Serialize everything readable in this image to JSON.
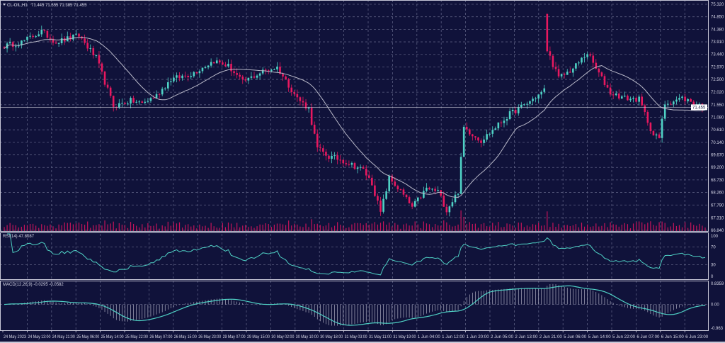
{
  "header": {
    "symbol": "CL-OIL,H1",
    "ohlc": "71.445 71.555 71.385 71.455"
  },
  "rsi_label": "RSI(14) 47.8087",
  "macd_label": "MACD(12,26,9) -0.0295 -0.0582",
  "current_price": "71.455",
  "colors": {
    "background": "#10123a",
    "bull": "#4fd1c5",
    "bear": "#e8185f",
    "ma": "#b8b8c8",
    "indicator": "#4fd1c5",
    "volume": "#c2145a",
    "grid": "#5a5d80"
  },
  "chart_data": {
    "type": "candlestick",
    "price_axis": {
      "ticks": [
        "75.320",
        "74.850",
        "74.380",
        "73.910",
        "73.440",
        "72.970",
        "72.500",
        "72.020",
        "71.550",
        "71.080",
        "70.610",
        "70.140",
        "69.670",
        "69.200",
        "68.730",
        "68.260",
        "67.790",
        "67.310",
        "66.840"
      ],
      "range": [
        66.84,
        75.32
      ]
    },
    "rsi_axis": {
      "ticks": [
        "100",
        "70",
        "30",
        "0"
      ],
      "range": [
        0,
        100
      ]
    },
    "macd_axis": {
      "ticks": [
        "0.8359",
        "0.00",
        "-0.963"
      ],
      "range": [
        -0.963,
        0.8359
      ]
    },
    "time_labels": [
      "24 May 2023",
      "24 May 13:00",
      "24 May 21:00",
      "25 May 06:00",
      "25 May 14:00",
      "25 May 22:00",
      "26 May 07:00",
      "26 May 15:00",
      "26 May 23:00",
      "29 May 07:00",
      "29 May 15:00",
      "30 May 02:00",
      "30 May 10:00",
      "30 May 18:00",
      "31 May 03:00",
      "31 May 11:00",
      "31 May 19:00",
      "1 Jun 04:00",
      "1 Jun 12:00",
      "1 Jun 20:00",
      "2 Jun 05:00",
      "2 Jun 13:00",
      "2 Jun 21:00",
      "5 Jun 06:00",
      "5 Jun 14:00",
      "5 Jun 22:00",
      "6 Jun 07:00",
      "6 Jun 15:00",
      "6 Jun 23:00"
    ],
    "bars": 245,
    "close_path": [
      [
        0,
        73.75
      ],
      [
        6,
        73.9
      ],
      [
        13,
        74.3
      ],
      [
        18,
        73.9
      ],
      [
        26,
        74.15
      ],
      [
        32,
        73.3
      ],
      [
        38,
        71.5
      ],
      [
        44,
        71.7
      ],
      [
        48,
        71.6
      ],
      [
        53,
        71.9
      ],
      [
        58,
        72.5
      ],
      [
        65,
        72.7
      ],
      [
        73,
        73.2
      ],
      [
        78,
        73.0
      ],
      [
        83,
        72.4
      ],
      [
        90,
        72.8
      ],
      [
        95,
        72.95
      ],
      [
        102,
        71.8
      ],
      [
        106,
        71.4
      ],
      [
        109,
        69.9
      ],
      [
        113,
        69.6
      ],
      [
        117,
        69.5
      ],
      [
        125,
        69.1
      ],
      [
        128,
        68.6
      ],
      [
        131,
        67.5
      ],
      [
        134,
        68.8
      ],
      [
        138,
        68.3
      ],
      [
        142,
        67.7
      ],
      [
        147,
        68.4
      ],
      [
        151,
        68.3
      ],
      [
        154,
        67.6
      ],
      [
        158,
        68.3
      ],
      [
        160,
        70.7
      ],
      [
        166,
        70.2
      ],
      [
        176,
        71.2
      ],
      [
        182,
        71.6
      ],
      [
        187,
        72.0
      ],
      [
        188,
        72.1
      ],
      [
        189,
        73.6
      ],
      [
        193,
        72.55
      ],
      [
        198,
        72.9
      ],
      [
        203,
        73.5
      ],
      [
        206,
        72.9
      ],
      [
        211,
        72.0
      ],
      [
        216,
        71.8
      ],
      [
        221,
        71.75
      ],
      [
        226,
        70.4
      ],
      [
        228,
        70.3
      ],
      [
        230,
        71.6
      ],
      [
        236,
        71.8
      ],
      [
        244,
        71.455
      ]
    ],
    "gap_bar": {
      "bar": 189,
      "open": 74.95
    },
    "moving_average_period": 20,
    "rsi_period": 14,
    "macd_params": [
      12,
      26,
      9
    ]
  }
}
